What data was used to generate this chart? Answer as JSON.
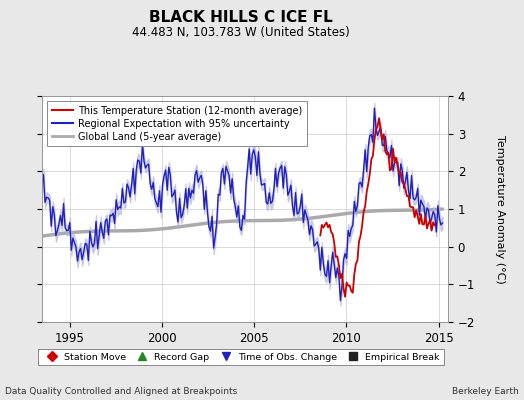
{
  "title": "BLACK HILLS C ICE FL",
  "subtitle": "44.483 N, 103.783 W (United States)",
  "ylabel": "Temperature Anomaly (°C)",
  "xlabel_left": "Data Quality Controlled and Aligned at Breakpoints",
  "xlabel_right": "Berkeley Earth",
  "ylim": [
    -2,
    4
  ],
  "xlim": [
    1993.5,
    2015.5
  ],
  "xticks": [
    1995,
    2000,
    2005,
    2010,
    2015
  ],
  "yticks": [
    -2,
    -1,
    0,
    1,
    2,
    3,
    4
  ],
  "background_color": "#e8e8e8",
  "plot_bg_color": "#ffffff",
  "grid_color": "#cccccc",
  "red_color": "#cc0000",
  "blue_color": "#2020bb",
  "blue_fill_color": "#b0b0dd",
  "gray_color": "#aaaaaa",
  "legend_entries": [
    "This Temperature Station (12-month average)",
    "Regional Expectation with 95% uncertainty",
    "Global Land (5-year average)"
  ],
  "marker_legend": [
    {
      "marker": "D",
      "color": "#cc0000",
      "label": "Station Move"
    },
    {
      "marker": "^",
      "color": "#228822",
      "label": "Record Gap"
    },
    {
      "marker": "v",
      "color": "#2020bb",
      "label": "Time of Obs. Change"
    },
    {
      "marker": "s",
      "color": "#222222",
      "label": "Empirical Break"
    }
  ]
}
